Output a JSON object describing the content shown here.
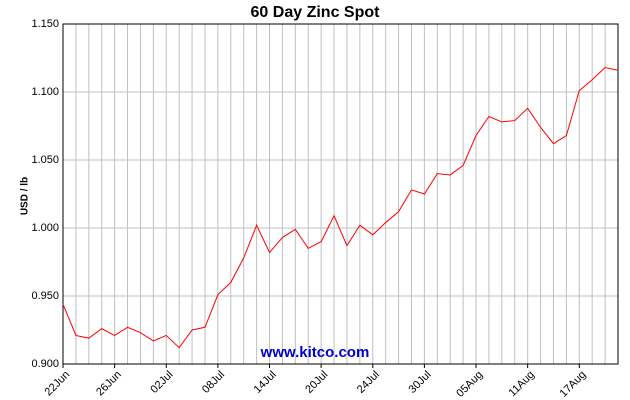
{
  "chart_data": {
    "type": "line",
    "title": "60 Day Zinc Spot",
    "y_label": "USD / lb",
    "annotation": "www.kitco.com",
    "categories": [
      "22Jun",
      null,
      null,
      null,
      "26Jun",
      null,
      null,
      null,
      "02Jul",
      null,
      null,
      null,
      "08Jul",
      null,
      null,
      null,
      "14Jul",
      null,
      null,
      null,
      "20Jul",
      null,
      null,
      null,
      "24Jul",
      null,
      null,
      null,
      "30Jul",
      null,
      null,
      null,
      "05Aug",
      null,
      null,
      null,
      "11Aug",
      null,
      null,
      null,
      "17Aug",
      null,
      null,
      null
    ],
    "series": [
      {
        "name": "Zinc",
        "color": "#ff0000",
        "values": [
          0.944,
          0.921,
          0.919,
          0.926,
          0.921,
          0.927,
          0.923,
          0.917,
          0.921,
          0.912,
          0.925,
          0.927,
          0.951,
          0.96,
          0.978,
          1.002,
          0.982,
          0.993,
          0.999,
          0.985,
          0.99,
          1.009,
          0.987,
          1.002,
          0.995,
          1.004,
          1.012,
          1.028,
          1.025,
          1.04,
          1.039,
          1.046,
          1.068,
          1.082,
          1.078,
          1.079,
          1.088,
          1.074,
          1.062,
          1.068,
          1.101,
          1.109,
          1.118,
          1.116
        ]
      }
    ],
    "ylim": [
      0.9,
      1.15
    ],
    "yticks": [
      {
        "value": 0.9,
        "label": "0.900"
      },
      {
        "value": 0.95,
        "label": "0.950"
      },
      {
        "value": 1.0,
        "label": "1.000"
      },
      {
        "value": 1.05,
        "label": "1.050"
      },
      {
        "value": 1.1,
        "label": "1.100"
      },
      {
        "value": 1.15,
        "label": "1.150"
      }
    ],
    "grid": true
  }
}
